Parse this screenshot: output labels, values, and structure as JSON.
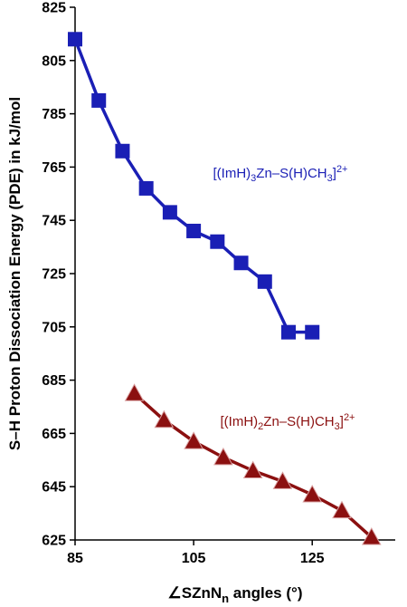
{
  "chart_data": {
    "type": "line",
    "xlabel": "∠SZnN",
    "xlabel_sub": "n",
    "xlabel_suffix": " angles (°)",
    "ylabel": "S–H Proton Dissociation Energy (PDE) in kJ/mol",
    "xlim": [
      85,
      139
    ],
    "ylim": [
      625,
      825
    ],
    "x_ticks": [
      85,
      105,
      125
    ],
    "y_ticks": [
      625,
      645,
      665,
      685,
      705,
      725,
      745,
      765,
      785,
      805,
      825
    ],
    "grid": false,
    "series": [
      {
        "name_parts": [
          "[(ImH)",
          "3",
          "Zn–S(H)CH",
          "3",
          "]",
          "2+"
        ],
        "color": "#1a1fb5",
        "marker": "square",
        "x": [
          85,
          89,
          93,
          97,
          101,
          105,
          109,
          113,
          117,
          121,
          125
        ],
        "y": [
          813,
          790,
          771,
          757,
          748,
          741,
          737,
          729,
          722,
          703,
          703
        ]
      },
      {
        "name_parts": [
          "[(ImH)",
          "2",
          "Zn–S(H)CH",
          "3",
          "]",
          "2+"
        ],
        "color": "#8b1010",
        "marker": "triangle",
        "x": [
          95,
          100,
          105,
          110,
          115,
          120,
          125,
          130,
          135
        ],
        "y": [
          680,
          670,
          662,
          656,
          651,
          647,
          642,
          636,
          626
        ]
      }
    ]
  }
}
